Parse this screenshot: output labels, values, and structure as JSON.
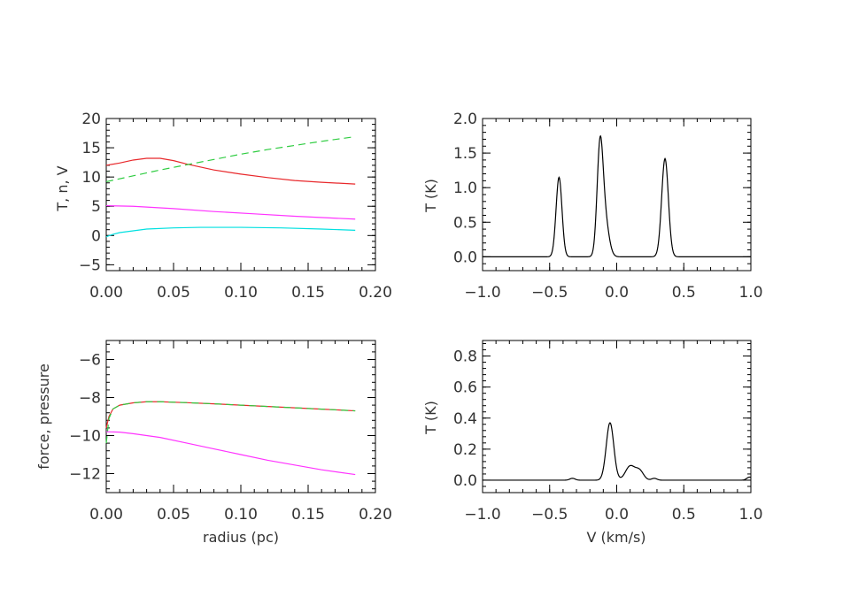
{
  "chart_data": [
    {
      "type": "line",
      "title": "",
      "xlabel": "",
      "ylabel": "T, n, V",
      "xlim": [
        0,
        0.2
      ],
      "ylim": [
        -6,
        20
      ],
      "xticks": [
        "0.00",
        "0.05",
        "0.10",
        "0.15",
        "0.20"
      ],
      "yticks": [
        "−5",
        "0",
        "5",
        "10",
        "15",
        "20"
      ],
      "series": [
        {
          "color": "#e8282b",
          "style": "solid",
          "x": [
            0,
            0.01,
            0.02,
            0.03,
            0.04,
            0.05,
            0.06,
            0.08,
            0.1,
            0.12,
            0.14,
            0.16,
            0.185
          ],
          "y": [
            12.0,
            12.4,
            12.9,
            13.2,
            13.2,
            12.8,
            12.2,
            11.2,
            10.5,
            9.9,
            9.4,
            9.1,
            8.8
          ]
        },
        {
          "color": "#2ecc40",
          "style": "dashed",
          "x": [
            0,
            0.02,
            0.04,
            0.06,
            0.08,
            0.1,
            0.12,
            0.14,
            0.16,
            0.185
          ],
          "y": [
            9.2,
            10.2,
            11.2,
            12.1,
            13.0,
            13.9,
            14.7,
            15.4,
            16.1,
            16.9
          ]
        },
        {
          "color": "#ff33ff",
          "style": "solid",
          "x": [
            0,
            0.02,
            0.05,
            0.08,
            0.11,
            0.14,
            0.185
          ],
          "y": [
            5.1,
            5.0,
            4.6,
            4.1,
            3.7,
            3.3,
            2.8
          ]
        },
        {
          "color": "#00e0e0",
          "style": "solid",
          "x": [
            0,
            0.005,
            0.01,
            0.02,
            0.03,
            0.05,
            0.07,
            0.1,
            0.13,
            0.16,
            0.185
          ],
          "y": [
            -0.2,
            0.2,
            0.5,
            0.8,
            1.1,
            1.3,
            1.4,
            1.4,
            1.3,
            1.1,
            0.9
          ]
        }
      ]
    },
    {
      "type": "line",
      "title": "",
      "xlabel": "",
      "ylabel": "T (K)",
      "xlim": [
        -1,
        1
      ],
      "ylim": [
        -0.2,
        2.0
      ],
      "xticks": [
        "−1.0",
        "−0.5",
        "0.0",
        "0.5",
        "1.0"
      ],
      "yticks": [
        "0.0",
        "0.5",
        "1.0",
        "1.5",
        "2.0"
      ],
      "series": [
        {
          "color": "#000000",
          "style": "solid",
          "peaks": [
            [
              -0.43,
              1.15,
              0.022
            ],
            [
              -0.125,
              1.45,
              0.022
            ],
            [
              -0.09,
              0.55,
              0.03
            ],
            [
              0.36,
              1.42,
              0.025
            ]
          ]
        }
      ]
    },
    {
      "type": "line",
      "title": "",
      "xlabel": "radius (pc)",
      "ylabel": "force, pressure",
      "xlim": [
        0,
        0.2
      ],
      "ylim": [
        -13,
        -5
      ],
      "xticks": [
        "0.00",
        "0.05",
        "0.10",
        "0.15",
        "0.20"
      ],
      "yticks": [
        "−12",
        "−10",
        "−8",
        "−6"
      ],
      "series": [
        {
          "color": "#e8282b",
          "style": "solid",
          "x": [
            0,
            0.002,
            0.005,
            0.01,
            0.02,
            0.03,
            0.04,
            0.06,
            0.08,
            0.1,
            0.12,
            0.14,
            0.16,
            0.185
          ],
          "y": [
            -9.6,
            -9.0,
            -8.6,
            -8.4,
            -8.28,
            -8.22,
            -8.22,
            -8.27,
            -8.33,
            -8.4,
            -8.47,
            -8.54,
            -8.61,
            -8.7
          ]
        },
        {
          "color": "#2ecc40",
          "style": "dashed",
          "x": [
            0,
            0.002,
            0.005,
            0.01,
            0.02,
            0.03,
            0.04,
            0.06,
            0.08,
            0.1,
            0.12,
            0.14,
            0.16,
            0.185
          ],
          "y": [
            -10.4,
            -9.1,
            -8.6,
            -8.4,
            -8.28,
            -8.22,
            -8.22,
            -8.27,
            -8.33,
            -8.4,
            -8.47,
            -8.54,
            -8.61,
            -8.7
          ]
        },
        {
          "color": "#ff33ff",
          "style": "solid",
          "x": [
            0,
            0.01,
            0.02,
            0.04,
            0.06,
            0.08,
            0.1,
            0.12,
            0.14,
            0.16,
            0.185
          ],
          "y": [
            -9.8,
            -9.82,
            -9.9,
            -10.1,
            -10.4,
            -10.7,
            -11.0,
            -11.3,
            -11.55,
            -11.8,
            -12.05
          ]
        }
      ]
    },
    {
      "type": "line",
      "title": "",
      "xlabel": "V (km/s)",
      "ylabel": "T (K)",
      "xlim": [
        -1,
        1
      ],
      "ylim": [
        -0.08,
        0.9
      ],
      "xticks": [
        "−1.0",
        "−0.5",
        "0.0",
        "0.5",
        "1.0"
      ],
      "yticks": [
        "0.0",
        "0.2",
        "0.4",
        "0.6",
        "0.8"
      ],
      "series": [
        {
          "color": "#000000",
          "style": "solid",
          "peaks": [
            [
              -0.05,
              0.37,
              0.028
            ],
            [
              0.1,
              0.09,
              0.035
            ],
            [
              0.17,
              0.06,
              0.03
            ],
            [
              -0.33,
              0.012,
              0.02
            ],
            [
              0.28,
              0.012,
              0.02
            ],
            [
              0.99,
              0.02,
              0.02
            ]
          ]
        }
      ]
    }
  ]
}
